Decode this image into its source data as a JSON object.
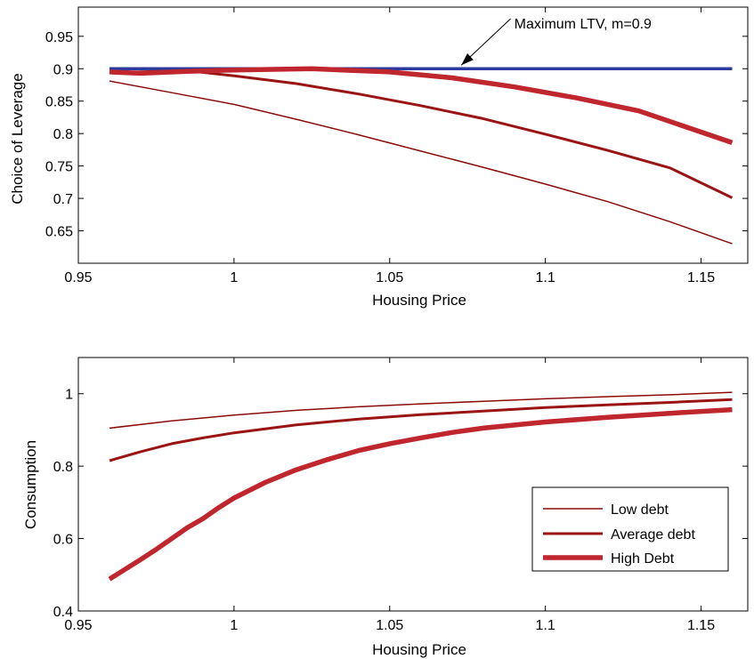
{
  "chart_data": [
    {
      "type": "line",
      "xlabel": "Housing Price",
      "ylabel": "Choice of Leverage",
      "xlim": [
        0.95,
        1.165
      ],
      "ylim": [
        0.6,
        0.995
      ],
      "xticks": [
        "0.95",
        "1",
        "1.05",
        "1.1",
        "1.15"
      ],
      "yticks": [
        "0.65",
        "0.7",
        "0.75",
        "0.8",
        "0.85",
        "0.9",
        "0.95"
      ],
      "grid": false,
      "annotation": {
        "text": "Maximum LTV, m=0.9",
        "arrow_to": [
          1.073,
          0.9
        ],
        "text_at": [
          1.09,
          0.969
        ]
      },
      "series": [
        {
          "style": "max-ltv",
          "color": "#2b3a9c",
          "width": 3.5,
          "x": [
            0.96,
            1.16
          ],
          "y": [
            0.9,
            0.9
          ]
        },
        {
          "style": "low",
          "color": "#8b0a0a",
          "width": 1.5,
          "x": [
            0.96,
            0.98,
            1.0,
            1.02,
            1.04,
            1.06,
            1.08,
            1.1,
            1.12,
            1.14,
            1.16
          ],
          "y": [
            0.881,
            0.863,
            0.845,
            0.822,
            0.798,
            0.773,
            0.748,
            0.722,
            0.695,
            0.664,
            0.63
          ]
        },
        {
          "style": "average",
          "color": "#9b1414",
          "width": 3,
          "x": [
            0.96,
            0.985,
            1.0,
            1.02,
            1.04,
            1.06,
            1.08,
            1.1,
            1.12,
            1.14,
            1.16
          ],
          "y": [
            0.894,
            0.897,
            0.889,
            0.877,
            0.861,
            0.843,
            0.823,
            0.799,
            0.774,
            0.747,
            0.701
          ]
        },
        {
          "style": "high",
          "color": "#c0262d",
          "width": 5.5,
          "x": [
            0.96,
            0.97,
            0.985,
            1.0,
            1.025,
            1.05,
            1.07,
            1.09,
            1.11,
            1.13,
            1.16
          ],
          "y": [
            0.895,
            0.893,
            0.896,
            0.898,
            0.9,
            0.895,
            0.886,
            0.872,
            0.855,
            0.835,
            0.786
          ]
        }
      ]
    },
    {
      "type": "line",
      "xlabel": "Housing Price",
      "ylabel": "Consumption",
      "xlim": [
        0.95,
        1.165
      ],
      "ylim": [
        0.4,
        1.1
      ],
      "xticks": [
        "0.95",
        "1",
        "1.05",
        "1.1",
        "1.15"
      ],
      "yticks": [
        "0.4",
        "0.6",
        "0.8",
        "1"
      ],
      "grid": false,
      "legend": {
        "placement": "lower-right",
        "entries": [
          "Low debt",
          "Average debt",
          "High Debt"
        ]
      },
      "series": [
        {
          "name": "Low debt",
          "color": "#8b0a0a",
          "width": 1.5,
          "x": [
            0.96,
            0.98,
            1.0,
            1.02,
            1.04,
            1.06,
            1.08,
            1.1,
            1.12,
            1.14,
            1.16
          ],
          "y": [
            0.905,
            0.925,
            0.941,
            0.954,
            0.964,
            0.972,
            0.979,
            0.986,
            0.992,
            0.997,
            1.004
          ]
        },
        {
          "name": "Average debt",
          "color": "#9b1414",
          "width": 3,
          "x": [
            0.96,
            0.97,
            0.98,
            0.99,
            1.0,
            1.02,
            1.04,
            1.06,
            1.08,
            1.1,
            1.12,
            1.14,
            1.16
          ],
          "y": [
            0.815,
            0.84,
            0.862,
            0.878,
            0.892,
            0.914,
            0.93,
            0.942,
            0.952,
            0.962,
            0.969,
            0.976,
            0.984
          ]
        },
        {
          "name": "High Debt",
          "color": "#c0262d",
          "width": 5.5,
          "x": [
            0.96,
            0.965,
            0.97,
            0.975,
            0.98,
            0.985,
            0.99,
            0.995,
            1.0,
            1.01,
            1.02,
            1.03,
            1.04,
            1.05,
            1.06,
            1.07,
            1.08,
            1.1,
            1.12,
            1.14,
            1.16
          ],
          "y": [
            0.488,
            0.515,
            0.542,
            0.57,
            0.6,
            0.63,
            0.655,
            0.685,
            0.712,
            0.755,
            0.79,
            0.818,
            0.843,
            0.862,
            0.878,
            0.893,
            0.905,
            0.922,
            0.935,
            0.946,
            0.956
          ]
        }
      ]
    }
  ]
}
